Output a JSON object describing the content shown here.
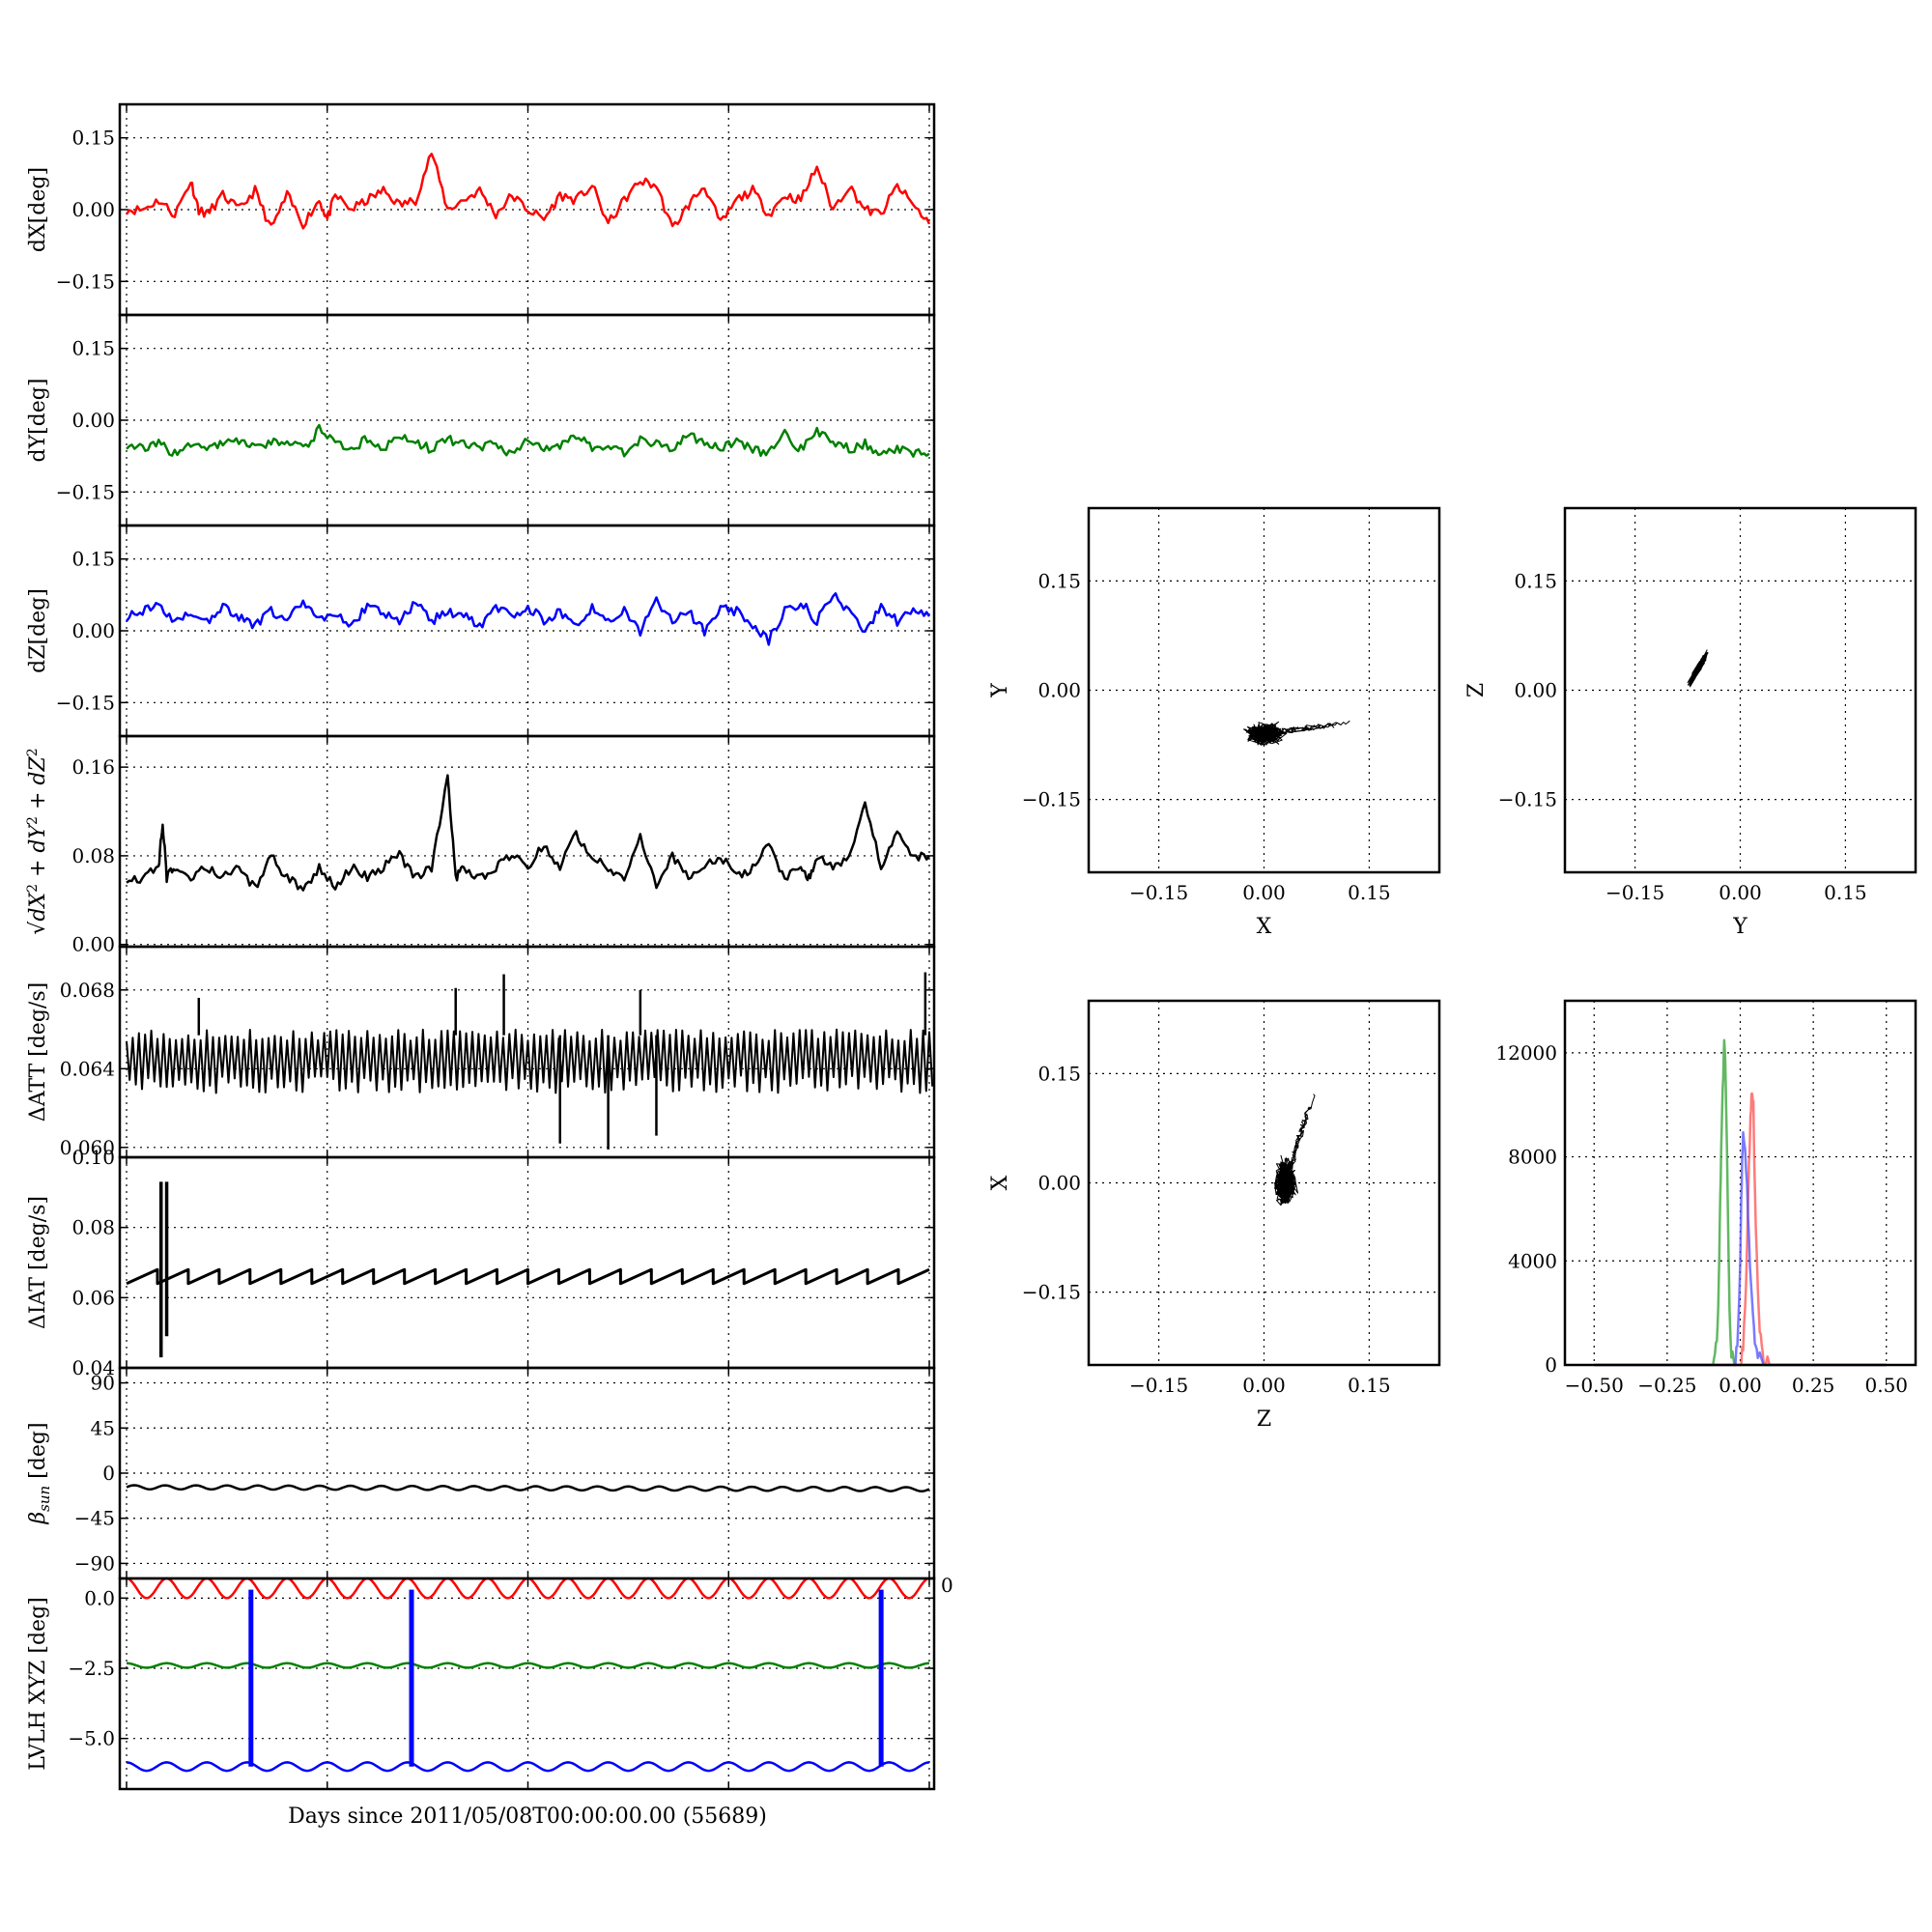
{
  "figure": {
    "xlabel": "Days since 2011/05/08T00:00:00.00 (55689)"
  },
  "chart_data": [
    {
      "type": "line",
      "panel": "dX",
      "ylabel": "dX[deg]",
      "ylim": [
        -0.22,
        0.22
      ],
      "yticks": [
        -0.15,
        0.0,
        0.15
      ],
      "ytick_labels": [
        "−0.15",
        "0.00",
        "0.15"
      ],
      "color": "#ff0000",
      "grid": true,
      "x": [
        0.0,
        0.02,
        0.04,
        0.06,
        0.08,
        0.09,
        0.1,
        0.12,
        0.14,
        0.16,
        0.18,
        0.2,
        0.22,
        0.24,
        0.25,
        0.26,
        0.28,
        0.3,
        0.32,
        0.34,
        0.36,
        0.38,
        0.4,
        0.42,
        0.44,
        0.46,
        0.48,
        0.5,
        0.52,
        0.54,
        0.56,
        0.58,
        0.6,
        0.62,
        0.64,
        0.66,
        0.68,
        0.7,
        0.72,
        0.74,
        0.76,
        0.78,
        0.8,
        0.82,
        0.84,
        0.86,
        0.88,
        0.9,
        0.92,
        0.94,
        0.96,
        0.98,
        1.0
      ],
      "y": [
        0.0,
        0.0,
        0.02,
        -0.01,
        0.06,
        0.0,
        -0.01,
        0.03,
        0.0,
        0.04,
        -0.04,
        0.03,
        -0.03,
        0.02,
        -0.02,
        0.03,
        0.0,
        0.02,
        0.04,
        0.01,
        0.02,
        0.12,
        0.0,
        0.02,
        0.04,
        -0.01,
        0.03,
        0.0,
        -0.02,
        0.03,
        0.02,
        0.05,
        -0.03,
        0.02,
        0.06,
        0.05,
        -0.04,
        0.01,
        0.05,
        -0.03,
        0.02,
        0.04,
        -0.01,
        0.03,
        0.02,
        0.09,
        0.0,
        0.05,
        0.0,
        -0.01,
        0.05,
        0.01,
        -0.03
      ]
    },
    {
      "type": "line",
      "panel": "dY",
      "ylabel": "dY[deg]",
      "ylim": [
        -0.22,
        0.22
      ],
      "yticks": [
        -0.15,
        0.0,
        0.15
      ],
      "ytick_labels": [
        "−0.15",
        "0.00",
        "0.15"
      ],
      "color": "#008000",
      "grid": true,
      "x": [
        0.0,
        0.02,
        0.04,
        0.06,
        0.08,
        0.1,
        0.12,
        0.14,
        0.16,
        0.18,
        0.2,
        0.22,
        0.24,
        0.26,
        0.28,
        0.3,
        0.32,
        0.34,
        0.36,
        0.38,
        0.4,
        0.42,
        0.44,
        0.46,
        0.48,
        0.5,
        0.52,
        0.54,
        0.56,
        0.58,
        0.6,
        0.62,
        0.64,
        0.66,
        0.68,
        0.7,
        0.72,
        0.74,
        0.76,
        0.78,
        0.8,
        0.82,
        0.84,
        0.86,
        0.88,
        0.9,
        0.92,
        0.94,
        0.96,
        0.98,
        1.0
      ],
      "y": [
        -0.05,
        -0.06,
        -0.05,
        -0.07,
        -0.05,
        -0.06,
        -0.05,
        -0.04,
        -0.06,
        -0.05,
        -0.04,
        -0.06,
        -0.02,
        -0.05,
        -0.06,
        -0.04,
        -0.06,
        -0.03,
        -0.05,
        -0.06,
        -0.04,
        -0.05,
        -0.06,
        -0.05,
        -0.07,
        -0.04,
        -0.06,
        -0.05,
        -0.03,
        -0.06,
        -0.05,
        -0.07,
        -0.04,
        -0.05,
        -0.06,
        -0.03,
        -0.05,
        -0.06,
        -0.04,
        -0.06,
        -0.07,
        -0.03,
        -0.06,
        -0.02,
        -0.05,
        -0.06,
        -0.05,
        -0.07,
        -0.06,
        -0.07,
        -0.07
      ]
    },
    {
      "type": "line",
      "panel": "dZ",
      "ylabel": "dZ[deg]",
      "ylim": [
        -0.22,
        0.22
      ],
      "yticks": [
        -0.15,
        0.0,
        0.15
      ],
      "ytick_labels": [
        "−0.15",
        "0.00",
        "0.15"
      ],
      "color": "#0000ff",
      "grid": true,
      "x": [
        0.0,
        0.02,
        0.04,
        0.06,
        0.08,
        0.1,
        0.12,
        0.14,
        0.16,
        0.18,
        0.2,
        0.22,
        0.24,
        0.26,
        0.28,
        0.3,
        0.32,
        0.34,
        0.36,
        0.38,
        0.4,
        0.42,
        0.44,
        0.46,
        0.48,
        0.5,
        0.52,
        0.54,
        0.56,
        0.58,
        0.6,
        0.62,
        0.64,
        0.66,
        0.68,
        0.7,
        0.72,
        0.74,
        0.76,
        0.78,
        0.8,
        0.82,
        0.84,
        0.86,
        0.88,
        0.9,
        0.92,
        0.94,
        0.96,
        0.98,
        1.0
      ],
      "y": [
        0.03,
        0.04,
        0.05,
        0.02,
        0.04,
        0.02,
        0.05,
        0.03,
        0.01,
        0.04,
        0.02,
        0.06,
        0.02,
        0.04,
        0.01,
        0.05,
        0.04,
        0.02,
        0.06,
        0.02,
        0.04,
        0.03,
        0.01,
        0.05,
        0.03,
        0.05,
        0.02,
        0.04,
        0.01,
        0.05,
        0.02,
        0.04,
        0.0,
        0.06,
        0.02,
        0.04,
        0.0,
        0.05,
        0.04,
        0.01,
        -0.02,
        0.04,
        0.06,
        0.02,
        0.08,
        0.04,
        0.0,
        0.05,
        0.02,
        0.04,
        0.03
      ]
    },
    {
      "type": "line",
      "panel": "total",
      "ylabel": "√(dX² + dY² + dZ²)",
      "ylim": [
        -0.002,
        0.188
      ],
      "yticks": [
        0.0,
        0.08,
        0.16
      ],
      "ytick_labels": [
        "0.00",
        "0.08",
        "0.16"
      ],
      "color": "#000000",
      "grid": true,
      "x": [
        0.0,
        0.02,
        0.04,
        0.045,
        0.05,
        0.06,
        0.08,
        0.1,
        0.12,
        0.14,
        0.16,
        0.18,
        0.2,
        0.22,
        0.24,
        0.26,
        0.28,
        0.3,
        0.32,
        0.34,
        0.36,
        0.38,
        0.4,
        0.41,
        0.42,
        0.44,
        0.46,
        0.48,
        0.5,
        0.52,
        0.54,
        0.56,
        0.58,
        0.6,
        0.62,
        0.64,
        0.66,
        0.68,
        0.7,
        0.72,
        0.74,
        0.76,
        0.78,
        0.8,
        0.82,
        0.84,
        0.85,
        0.86,
        0.88,
        0.9,
        0.92,
        0.94,
        0.96,
        0.98,
        1.0
      ],
      "y": [
        0.06,
        0.06,
        0.07,
        0.11,
        0.06,
        0.07,
        0.06,
        0.07,
        0.06,
        0.07,
        0.05,
        0.08,
        0.06,
        0.05,
        0.07,
        0.05,
        0.07,
        0.06,
        0.07,
        0.08,
        0.06,
        0.07,
        0.15,
        0.06,
        0.07,
        0.06,
        0.07,
        0.08,
        0.07,
        0.09,
        0.07,
        0.1,
        0.08,
        0.07,
        0.06,
        0.1,
        0.05,
        0.08,
        0.06,
        0.07,
        0.08,
        0.06,
        0.07,
        0.09,
        0.06,
        0.07,
        0.06,
        0.08,
        0.07,
        0.08,
        0.13,
        0.07,
        0.1,
        0.08,
        0.08
      ]
    },
    {
      "type": "line",
      "panel": "dATT",
      "ylabel": "ΔATT [deg/s]",
      "ylim": [
        0.0595,
        0.0702
      ],
      "yticks": [
        0.06,
        0.064,
        0.068
      ],
      "ytick_labels": [
        "0.060",
        "0.064",
        "0.068"
      ],
      "color": "#000000",
      "grid": true,
      "band_upper": 0.0657,
      "band_lower": 0.0632,
      "spikes": [
        {
          "x": 0.41,
          "y": 0.0681
        },
        {
          "x": 0.47,
          "y": 0.0688
        },
        {
          "x": 0.54,
          "y": 0.0602
        },
        {
          "x": 0.6,
          "y": 0.0599
        },
        {
          "x": 0.64,
          "y": 0.068
        },
        {
          "x": 0.66,
          "y": 0.0606
        },
        {
          "x": 0.995,
          "y": 0.0689
        },
        {
          "x": 0.09,
          "y": 0.0676
        }
      ]
    },
    {
      "type": "line",
      "panel": "dIAT",
      "ylabel": "ΔIAT [deg/s]",
      "ylim": [
        0.04,
        0.1
      ],
      "yticks": [
        0.04,
        0.06,
        0.08,
        0.1
      ],
      "ytick_labels": [
        "0.04",
        "0.06",
        "0.08",
        "0.10"
      ],
      "color": "#000000",
      "grid": true,
      "sawtooth_low": 0.064,
      "sawtooth_high": 0.068,
      "sawtooth_teeth": 26,
      "spikes": [
        {
          "x": 0.043,
          "y_min": 0.043,
          "y_max": 0.093
        },
        {
          "x": 0.05,
          "y_min": 0.049,
          "y_max": 0.093
        }
      ]
    },
    {
      "type": "line",
      "panel": "beta_sun",
      "ylabel": "βsun [deg]",
      "ylim": [
        -105,
        105
      ],
      "yticks": [
        -90,
        -45,
        0,
        45,
        90
      ],
      "ytick_labels": [
        "−90",
        "−45",
        "0",
        "45",
        "90"
      ],
      "color": "#000000",
      "grid": true,
      "baseline": -14,
      "amplitude": 2,
      "cycles": 26
    },
    {
      "type": "line",
      "panel": "lvlh",
      "ylabel": "LVLH XYZ [deg]",
      "ylim": [
        -6.8,
        0.7
      ],
      "yticks": [
        -5.0,
        -2.5,
        0.0
      ],
      "ytick_labels": [
        "−5.0",
        "−2.5",
        "0.0"
      ],
      "grid": true,
      "series": [
        {
          "color": "#ff0000",
          "baseline": 0.35,
          "amplitude": 0.35,
          "cycles": 20
        },
        {
          "color": "#008000",
          "baseline": -2.4,
          "amplitude": 0.08,
          "cycles": 20
        },
        {
          "color": "#0000ff",
          "baseline": -6.0,
          "amplitude": 0.15,
          "cycles": 20
        }
      ],
      "vertical_lines": [
        0.155,
        0.355,
        0.94
      ],
      "vertical_color": "#0000ff"
    },
    {
      "type": "scatter",
      "panel": "XY",
      "xlabel": "X",
      "ylabel": "Y",
      "xlim": [
        -0.25,
        0.25
      ],
      "ylim": [
        -0.25,
        0.25
      ],
      "ticks": [
        -0.15,
        0.0,
        0.15
      ],
      "tick_labels": [
        "−0.15",
        "0.00",
        "0.15"
      ],
      "cloud_center": [
        0.0,
        -0.06
      ],
      "cloud_spread": [
        0.025,
        0.013
      ],
      "cloud_tail_to": [
        0.12,
        -0.045
      ]
    },
    {
      "type": "scatter",
      "panel": "YZ",
      "xlabel": "Y",
      "ylabel": "Z",
      "xlim": [
        -0.25,
        0.25
      ],
      "ylim": [
        -0.25,
        0.25
      ],
      "ticks": [
        -0.15,
        0.0,
        0.15
      ],
      "tick_labels": [
        "−0.15",
        "0.00",
        "0.15"
      ],
      "cloud_center": [
        -0.06,
        0.03
      ],
      "cloud_spread": [
        0.012,
        0.025
      ],
      "cloud_tilt": 1.6
    },
    {
      "type": "scatter",
      "panel": "ZX",
      "xlabel": "Z",
      "ylabel": "X",
      "xlim": [
        -0.25,
        0.25
      ],
      "ylim": [
        -0.25,
        0.25
      ],
      "ticks": [
        -0.15,
        0.0,
        0.15
      ],
      "tick_labels": [
        "−0.15",
        "0.00",
        "0.15"
      ],
      "cloud_center": [
        0.03,
        0.0
      ],
      "cloud_spread": [
        0.014,
        0.03
      ],
      "cloud_tail_to": [
        0.07,
        0.12
      ]
    },
    {
      "type": "line",
      "panel": "histogram",
      "xlim": [
        -0.6,
        0.6
      ],
      "ylim": [
        0,
        14000
      ],
      "xticks": [
        -0.5,
        -0.25,
        0.0,
        0.25,
        0.5
      ],
      "xtick_labels": [
        "−0.50",
        "−0.25",
        "0.00",
        "0.25",
        "0.50"
      ],
      "yticks": [
        0,
        4000,
        8000,
        12000
      ],
      "ytick_labels": [
        "0",
        "4000",
        "8000",
        "12000"
      ],
      "series": [
        {
          "color": "#2ca02c",
          "x": [
            -0.5,
            -0.1,
            -0.09,
            -0.08,
            -0.075,
            -0.07,
            -0.065,
            -0.06,
            -0.055,
            -0.05,
            -0.045,
            -0.04,
            -0.035,
            -0.03,
            -0.02,
            0.5
          ],
          "y": [
            0,
            0,
            150,
            900,
            2500,
            5200,
            8200,
            10600,
            12400,
            11200,
            8000,
            4100,
            1500,
            400,
            0,
            0
          ]
        },
        {
          "color": "#ff4d4d",
          "x": [
            -0.5,
            0.0,
            0.01,
            0.02,
            0.03,
            0.035,
            0.04,
            0.045,
            0.05,
            0.06,
            0.07,
            0.08,
            0.1,
            0.5
          ],
          "y": [
            0,
            0,
            600,
            3000,
            7800,
            9600,
            10700,
            10100,
            6800,
            2800,
            900,
            200,
            0,
            0
          ]
        },
        {
          "color": "#4d4dff",
          "x": [
            -0.5,
            -0.02,
            -0.01,
            0.0,
            0.005,
            0.01,
            0.02,
            0.03,
            0.04,
            0.05,
            0.06,
            0.08,
            0.5
          ],
          "y": [
            0,
            0,
            900,
            3800,
            7200,
            9200,
            7600,
            4800,
            2400,
            900,
            300,
            0,
            0
          ]
        }
      ]
    }
  ]
}
